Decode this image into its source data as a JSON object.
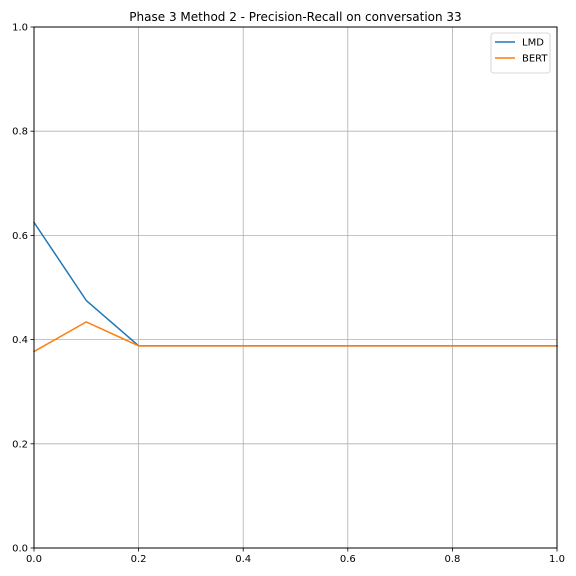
{
  "chart_data": {
    "type": "line",
    "title": "Phase 3 Method 2 - Precision-Recall on conversation 33",
    "xlabel": "",
    "ylabel": "",
    "xlim": [
      0.0,
      1.0
    ],
    "ylim": [
      0.0,
      1.0
    ],
    "x_ticks": [
      "0.0",
      "0.2",
      "0.4",
      "0.6",
      "0.8",
      "1.0"
    ],
    "y_ticks": [
      "0.0",
      "0.2",
      "0.4",
      "0.6",
      "0.8",
      "1.0"
    ],
    "grid": true,
    "legend_position": "top-right",
    "series": [
      {
        "name": "LMD",
        "color": "#1f77b4",
        "x": [
          0.0,
          0.1,
          0.2,
          0.3,
          0.4,
          0.5,
          0.6,
          0.7,
          0.8,
          0.9,
          1.0
        ],
        "y": [
          0.625,
          0.475,
          0.388,
          0.388,
          0.388,
          0.388,
          0.388,
          0.388,
          0.388,
          0.388,
          0.388
        ]
      },
      {
        "name": "BERT",
        "color": "#ff7f0e",
        "x": [
          0.0,
          0.1,
          0.2,
          0.3,
          0.4,
          0.5,
          0.6,
          0.7,
          0.8,
          0.9,
          1.0
        ],
        "y": [
          0.377,
          0.434,
          0.388,
          0.388,
          0.388,
          0.388,
          0.388,
          0.388,
          0.388,
          0.388,
          0.388
        ]
      }
    ]
  }
}
